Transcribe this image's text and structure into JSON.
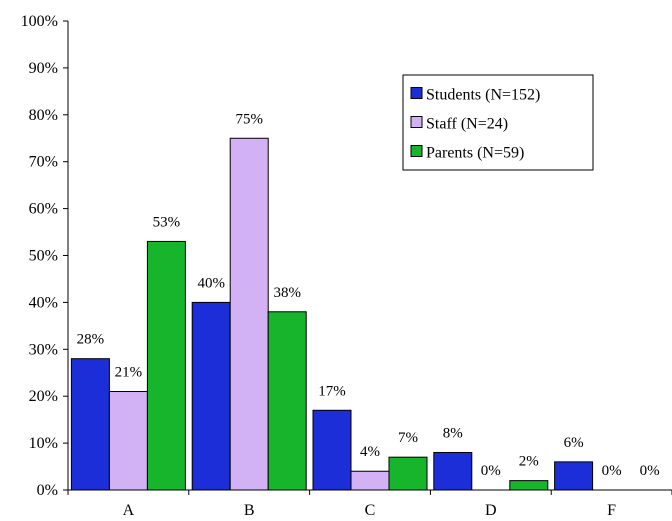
{
  "chart_data": {
    "type": "bar",
    "categories": [
      "A",
      "B",
      "C",
      "D",
      "F"
    ],
    "series": [
      {
        "name": "Students (N=152)",
        "values": [
          28,
          40,
          17,
          8,
          6
        ],
        "labels": [
          "28%",
          "40%",
          "17%",
          "8%",
          "6%"
        ],
        "color": "#1c2ed8"
      },
      {
        "name": "Staff (N=24)",
        "values": [
          21,
          75,
          4,
          0,
          0
        ],
        "labels": [
          "21%",
          "75%",
          "4%",
          "0%",
          "0%"
        ],
        "color": "#d2b2f5"
      },
      {
        "name": "Parents (N=59)",
        "values": [
          53,
          38,
          7,
          2,
          null
        ],
        "labels": [
          "53%",
          "38%",
          "7%",
          "2%",
          "0%"
        ],
        "color": "#16b52c"
      }
    ],
    "ylim": [
      0,
      100
    ],
    "yticks": [
      "0%",
      "10%",
      "20%",
      "30%",
      "40%",
      "50%",
      "60%",
      "70%",
      "80%",
      "90%",
      "100%"
    ],
    "legend_position": "top-right",
    "grid": false
  }
}
